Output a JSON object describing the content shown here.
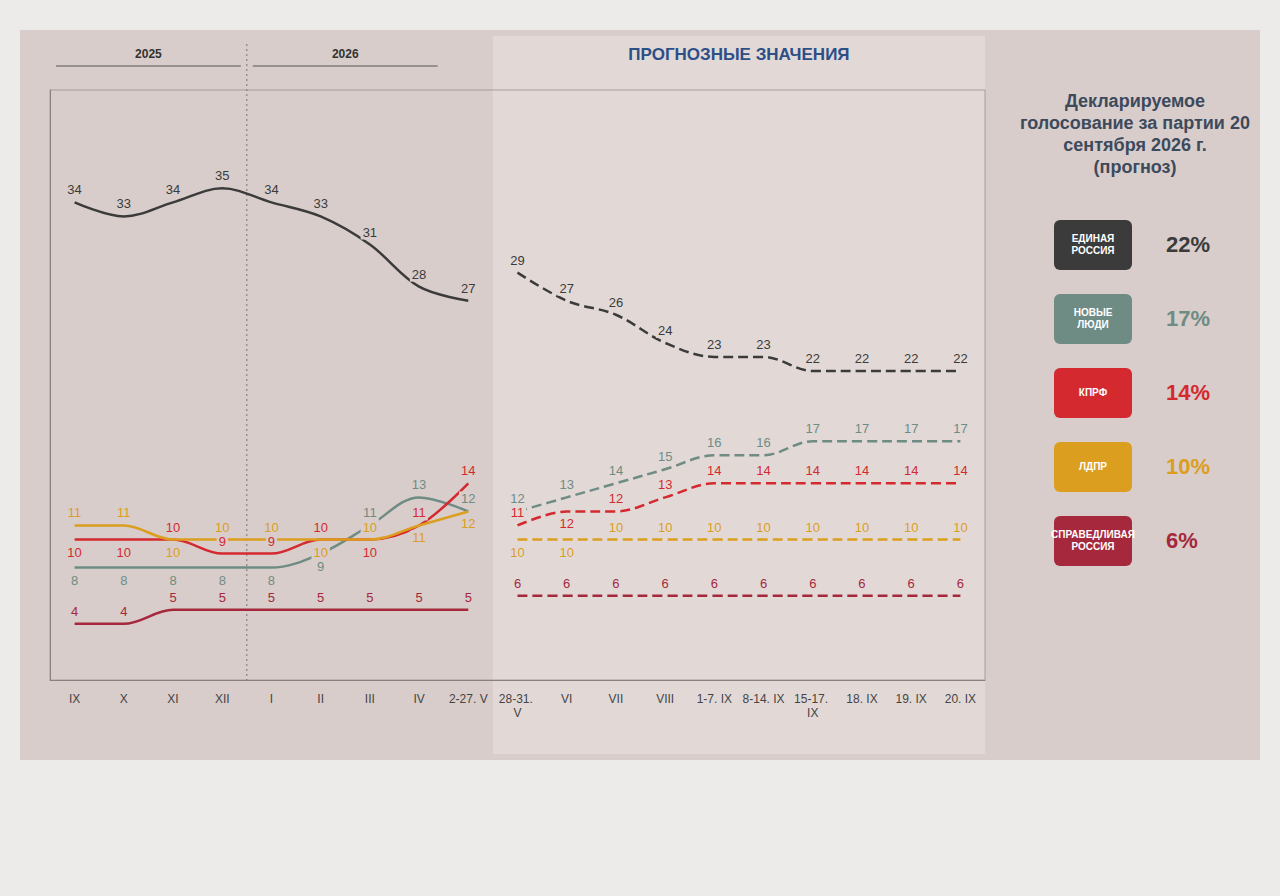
{
  "chart_data": {
    "type": "line",
    "title": "ПРОГНОЗНЫЕ ЗНАЧЕНИЯ",
    "forecast_from": "28-31. V",
    "periods": [
      {
        "label": "2025",
        "from": "IX",
        "to": "XII"
      },
      {
        "label": "2026",
        "from": "I",
        "to": "IV"
      }
    ],
    "categories": [
      "IX",
      "X",
      "XI",
      "XII",
      "I",
      "II",
      "III",
      "IV",
      "2-27. V",
      "28-31. V",
      "VI",
      "VII",
      "VIII",
      "1-7. IX",
      "8-14. IX",
      "15-17. IX",
      "18. IX",
      "19. IX",
      "20. IX"
    ],
    "series": [
      {
        "name": "ЕДИНАЯ РОССИЯ",
        "color": "#3b3b3b",
        "forecast_label": "22%",
        "values": [
          34,
          33,
          34,
          35,
          34,
          33,
          31,
          28,
          27,
          29,
          27,
          26,
          24,
          23,
          23,
          22,
          22,
          22,
          22
        ]
      },
      {
        "name": "НОВЫЕ ЛЮДИ",
        "color": "#6f8c84",
        "forecast_label": "17%",
        "values": [
          8,
          8,
          8,
          8,
          8,
          9,
          11,
          13,
          12,
          12,
          13,
          14,
          15,
          16,
          16,
          17,
          17,
          17,
          17
        ]
      },
      {
        "name": "КПРФ",
        "color": "#d42a2f",
        "forecast_label": "14%",
        "values": [
          10,
          10,
          10,
          9,
          9,
          10,
          10,
          11,
          14,
          11,
          12,
          12,
          13,
          14,
          14,
          14,
          14,
          14,
          14
        ]
      },
      {
        "name": "ЛДПР",
        "color": "#dc9e1e",
        "forecast_label": "10%",
        "values": [
          11,
          11,
          10,
          10,
          10,
          10,
          10,
          11,
          12,
          10,
          10,
          10,
          10,
          10,
          10,
          10,
          10,
          10,
          10
        ]
      },
      {
        "name": "СПРАВЕДЛИВАЯ РОССИЯ",
        "color": "#a5283c",
        "forecast_label": "6%",
        "values": [
          4,
          4,
          5,
          5,
          5,
          5,
          5,
          5,
          5,
          6,
          6,
          6,
          6,
          6,
          6,
          6,
          6,
          6,
          6
        ]
      }
    ],
    "ylim": [
      0,
      42
    ],
    "yticks": [],
    "tick_labels": "x",
    "grid": false,
    "data_labels": true,
    "legend": "right",
    "legend_title": "Декларируемое голосование за партии 20 сентября 2026 г. (прогноз)"
  }
}
